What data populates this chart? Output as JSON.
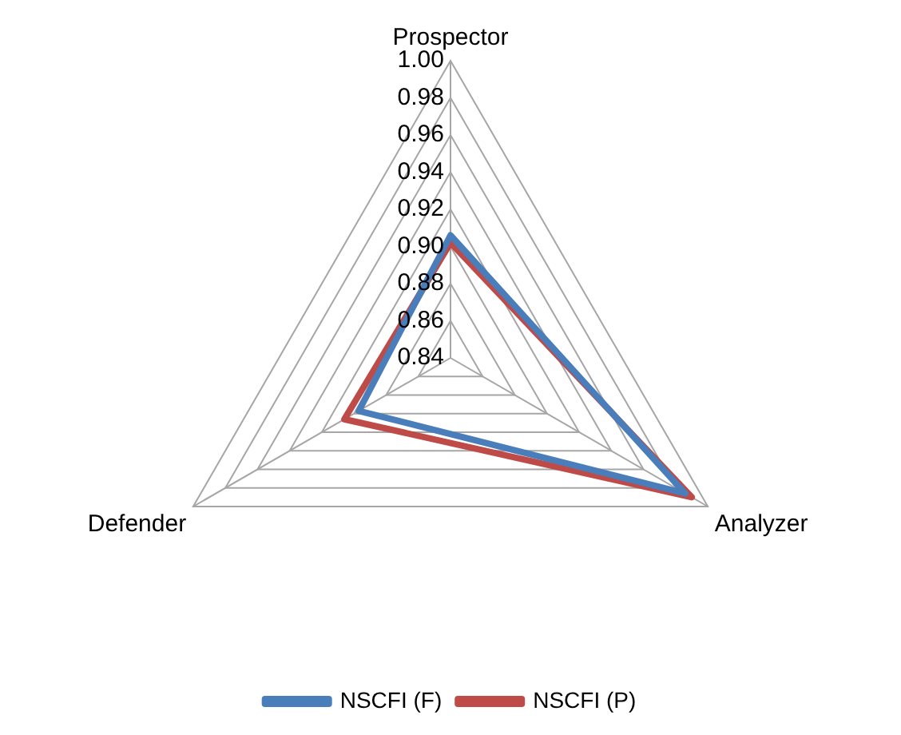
{
  "chart_data": {
    "type": "radar",
    "categories": [
      "Prospector",
      "Analyzer",
      "Defender"
    ],
    "series": [
      {
        "name": "NSCFI (F)",
        "color": "#4a7ebb",
        "values": [
          0.906,
          0.986,
          0.897
        ]
      },
      {
        "name": "NSCFI (P)",
        "color": "#be4b48",
        "values": [
          0.902,
          0.99,
          0.906
        ]
      }
    ],
    "ylim": [
      0.84,
      1.0
    ],
    "yticks": [
      0.84,
      0.86,
      0.88,
      {
        "value": 0.9,
        "label": "0.90"
      },
      0.92,
      0.94,
      0.96,
      0.98,
      {
        "value": 1.0,
        "label": "1.00"
      }
    ],
    "grid": true,
    "legend": "bottom",
    "marker": "none"
  }
}
